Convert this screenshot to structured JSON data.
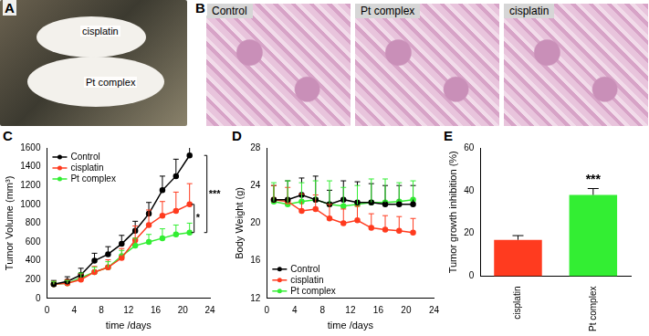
{
  "figure": {
    "panel_labels": [
      "A",
      "B",
      "C",
      "D",
      "E"
    ],
    "photo": {
      "labels": [
        "cisplatin",
        "Pt complex"
      ]
    },
    "histology": {
      "titles": [
        "Control",
        "Pt complex",
        "cisplatin"
      ]
    }
  },
  "chart_data": [
    {
      "type": "line",
      "x_label": "time /days",
      "y_label": "Tumor Volume (mm³)",
      "x": [
        1,
        3,
        5,
        7,
        9,
        11,
        13,
        15,
        17,
        19,
        21
      ],
      "xlim": [
        0,
        24
      ],
      "xticks": [
        0,
        4,
        8,
        12,
        16,
        20,
        24
      ],
      "ylim": [
        0,
        1600
      ],
      "yticks": [
        0,
        200,
        400,
        600,
        800,
        1000,
        1200,
        1400,
        1600
      ],
      "grid": false,
      "legend": "upper left",
      "marker": "circle",
      "series": [
        {
          "name": "Control",
          "color": "#000000",
          "values": [
            150,
            180,
            250,
            400,
            470,
            580,
            720,
            900,
            1150,
            1300,
            1520
          ],
          "errors": [
            40,
            50,
            70,
            80,
            80,
            90,
            100,
            120,
            150,
            180,
            180
          ]
        },
        {
          "name": "cisplatin",
          "color": "#ff3b1f",
          "values": [
            150,
            160,
            200,
            280,
            330,
            430,
            620,
            780,
            880,
            930,
            1000
          ],
          "errors": [
            30,
            40,
            60,
            60,
            80,
            100,
            150,
            160,
            150,
            200,
            220
          ]
        },
        {
          "name": "Pt complex",
          "color": "#33ee33",
          "values": [
            150,
            160,
            220,
            280,
            330,
            450,
            560,
            600,
            640,
            680,
            700
          ],
          "errors": [
            30,
            30,
            50,
            50,
            60,
            60,
            80,
            80,
            100,
            100,
            100
          ]
        }
      ],
      "annotations": [
        {
          "text": "***",
          "between": [
            "Control",
            "Pt complex"
          ]
        },
        {
          "text": "*",
          "between": [
            "cisplatin",
            "Pt complex"
          ]
        }
      ]
    },
    {
      "type": "line",
      "x_label": "time /days",
      "y_label": "Body Weight (g)",
      "x": [
        1,
        3,
        5,
        7,
        9,
        11,
        13,
        15,
        17,
        19,
        21
      ],
      "xlim": [
        0,
        24
      ],
      "xticks": [
        0,
        4,
        8,
        12,
        16,
        20,
        24
      ],
      "ylim": [
        12,
        28
      ],
      "yticks": [
        12,
        16,
        20,
        24,
        28
      ],
      "grid": false,
      "legend": "lower left",
      "marker": "circle",
      "series": [
        {
          "name": "Control",
          "color": "#000000",
          "values": [
            22.5,
            22.5,
            23,
            22.5,
            22,
            22.5,
            22.2,
            22.2,
            22,
            22,
            22
          ],
          "errors": [
            1.5,
            2,
            1.8,
            2.5,
            1.5,
            2,
            2.2,
            2,
            2,
            2,
            2
          ]
        },
        {
          "name": "cisplatin",
          "color": "#ff3b1f",
          "values": [
            22.5,
            22.3,
            21.3,
            21.5,
            20.5,
            20,
            20.3,
            19.5,
            19.3,
            19.2,
            19
          ],
          "errors": [
            1.5,
            1.5,
            1.8,
            1.5,
            1.5,
            1.5,
            1.5,
            1.5,
            1.5,
            1.5,
            1.5
          ]
        },
        {
          "name": "Pt complex",
          "color": "#33ee33",
          "values": [
            22.3,
            22,
            22.3,
            22.5,
            22,
            21.8,
            22,
            22.2,
            22.2,
            22.3,
            22.5
          ],
          "errors": [
            2,
            2.5,
            2,
            2,
            2.5,
            2,
            2,
            2.5,
            2.5,
            2,
            2
          ]
        }
      ]
    },
    {
      "type": "bar",
      "y_label": "Tumor growth inhibition (%)",
      "categories": [
        "cisplatin",
        "Pt complex"
      ],
      "values": [
        17,
        38
      ],
      "errors": [
        2,
        3
      ],
      "colors": [
        "#ff3b1f",
        "#33ee33"
      ],
      "ylim": [
        0,
        60
      ],
      "yticks": [
        0,
        20,
        40,
        60
      ],
      "grid": false,
      "annotations": [
        {
          "text": "***",
          "category": "Pt complex"
        }
      ]
    }
  ]
}
